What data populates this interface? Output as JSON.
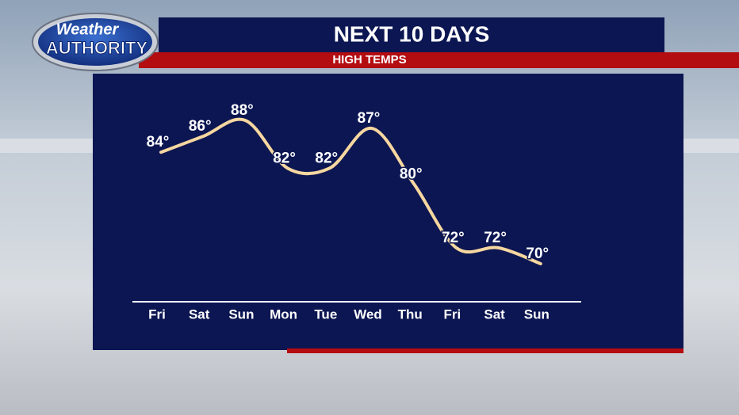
{
  "logo": {
    "line1": "Weather",
    "line2": "AUTHORITY"
  },
  "chart_data": {
    "type": "line",
    "title": "NEXT 10 DAYS",
    "subtitle": "HIGH TEMPS",
    "categories": [
      "Fri",
      "Sat",
      "Sun",
      "Mon",
      "Tue",
      "Wed",
      "Thu",
      "Fri",
      "Sat",
      "Sun"
    ],
    "values": [
      84,
      86,
      88,
      82,
      82,
      87,
      80,
      72,
      72,
      70
    ],
    "value_labels": [
      "84°",
      "86°",
      "88°",
      "82°",
      "82°",
      "87°",
      "80°",
      "72°",
      "72°",
      "70°"
    ],
    "color": "#f6d7a0"
  }
}
